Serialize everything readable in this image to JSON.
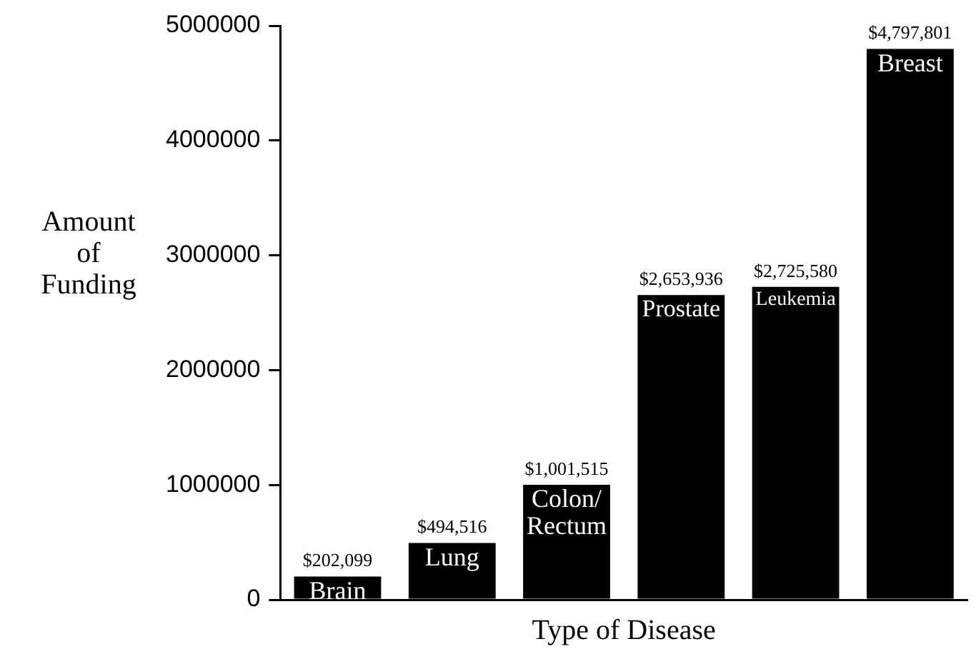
{
  "chart_data": {
    "type": "bar",
    "xlabel": "Type of Disease",
    "ylabel": "Amount of Funding",
    "categories": [
      "Brain",
      "Lung",
      "Colon/ Rectum",
      "Prostate",
      "Leukemia",
      "Breast"
    ],
    "values": [
      202099,
      494516,
      1001515,
      2653936,
      2725580,
      4797801
    ],
    "value_labels": [
      "$202,099",
      "$494,516",
      "$1,001,515",
      "$2,653,936",
      "$2,725,580",
      "$4,797,801"
    ],
    "color": "#000000",
    "ylim": [
      0,
      5000000
    ],
    "yticks": [
      0,
      1000000,
      2000000,
      3000000,
      4000000,
      5000000
    ],
    "grid": false,
    "legend": false,
    "tick_labels": "y"
  }
}
